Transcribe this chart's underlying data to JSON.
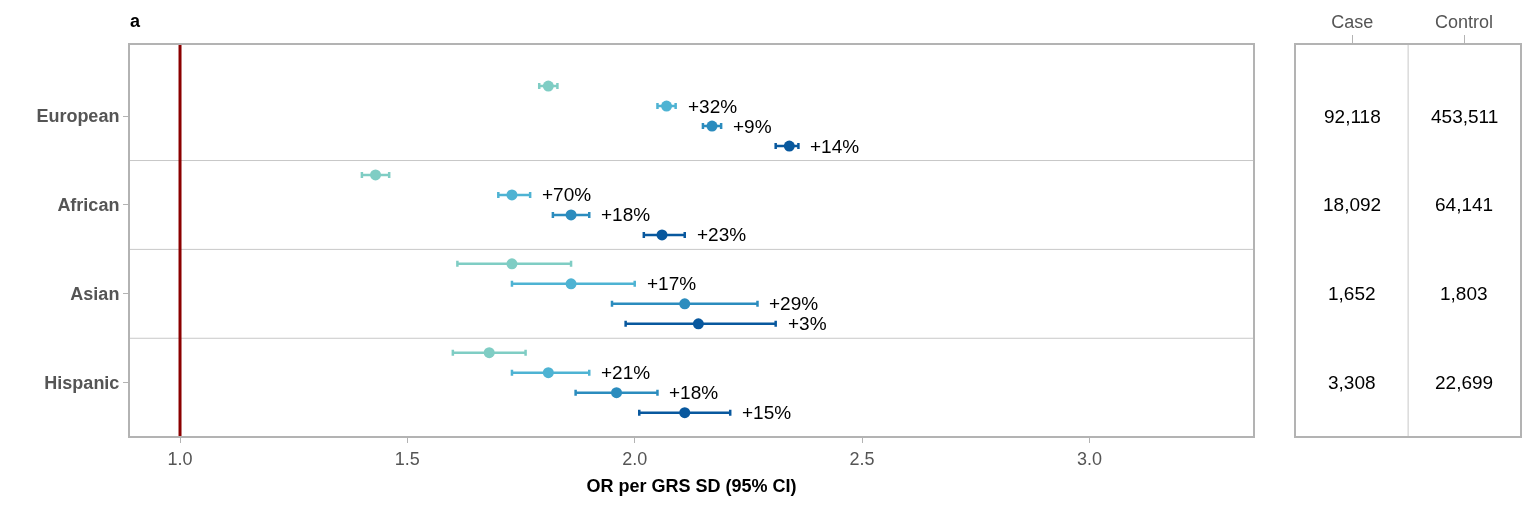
{
  "chart_data": [
    {
      "type": "scatter",
      "title": "a",
      "xlabel": "OR per GRS SD (95% CI)",
      "orientation": "horizontal",
      "categories": [
        "European",
        "African",
        "Asian",
        "Hispanic"
      ],
      "series": [
        {
          "color": "#7fcdc4",
          "values": [
            1.81,
            1.43,
            1.73,
            1.68
          ],
          "errors": [
            [
              1.79,
              1.83
            ],
            [
              1.4,
              1.46
            ],
            [
              1.61,
              1.86
            ],
            [
              1.6,
              1.76
            ]
          ]
        },
        {
          "color": "#4eb3d3",
          "values": [
            2.07,
            1.73,
            1.86,
            1.81
          ],
          "errors": [
            [
              2.05,
              2.09
            ],
            [
              1.7,
              1.77
            ],
            [
              1.73,
              2.0
            ],
            [
              1.73,
              1.9
            ]
          ]
        },
        {
          "color": "#2b8cbe",
          "values": [
            2.17,
            1.86,
            2.11,
            1.96
          ],
          "errors": [
            [
              2.15,
              2.19
            ],
            [
              1.82,
              1.9
            ],
            [
              1.95,
              2.27
            ],
            [
              1.87,
              2.05
            ]
          ]
        },
        {
          "color": "#08589e",
          "values": [
            2.34,
            2.06,
            2.14,
            2.11
          ],
          "errors": [
            [
              2.31,
              2.36
            ],
            [
              2.02,
              2.11
            ],
            [
              1.98,
              2.31
            ],
            [
              2.01,
              2.21
            ]
          ]
        }
      ],
      "annotations": [
        "+32%",
        "+9%",
        "+14%",
        "+70%",
        "+18%",
        "+23%",
        "+17%",
        "+29%",
        "+3%",
        "+21%",
        "+18%",
        "+15%"
      ],
      "xlim": [
        0.89,
        3.36
      ],
      "xticks": [
        {
          "value": 1,
          "label": "1.0"
        },
        {
          "value": 1.5,
          "label": "1.5"
        },
        {
          "value": 2,
          "label": "2.0"
        },
        {
          "value": 2.5,
          "label": "2.5"
        },
        {
          "value": 3,
          "label": "3.0"
        }
      ],
      "ref_lines": [
        {
          "axis": "x",
          "value": 1,
          "color": "#8b0000"
        }
      ],
      "marker": "circle",
      "grid": false
    },
    {
      "type": "other",
      "categories": [
        "Case",
        "Control"
      ],
      "cell_labels": [
        [
          "92,118",
          "453,511"
        ],
        [
          "18,092",
          "64,141"
        ],
        [
          "1,652",
          "1,803"
        ],
        [
          "3,308",
          "22,699"
        ]
      ]
    }
  ]
}
